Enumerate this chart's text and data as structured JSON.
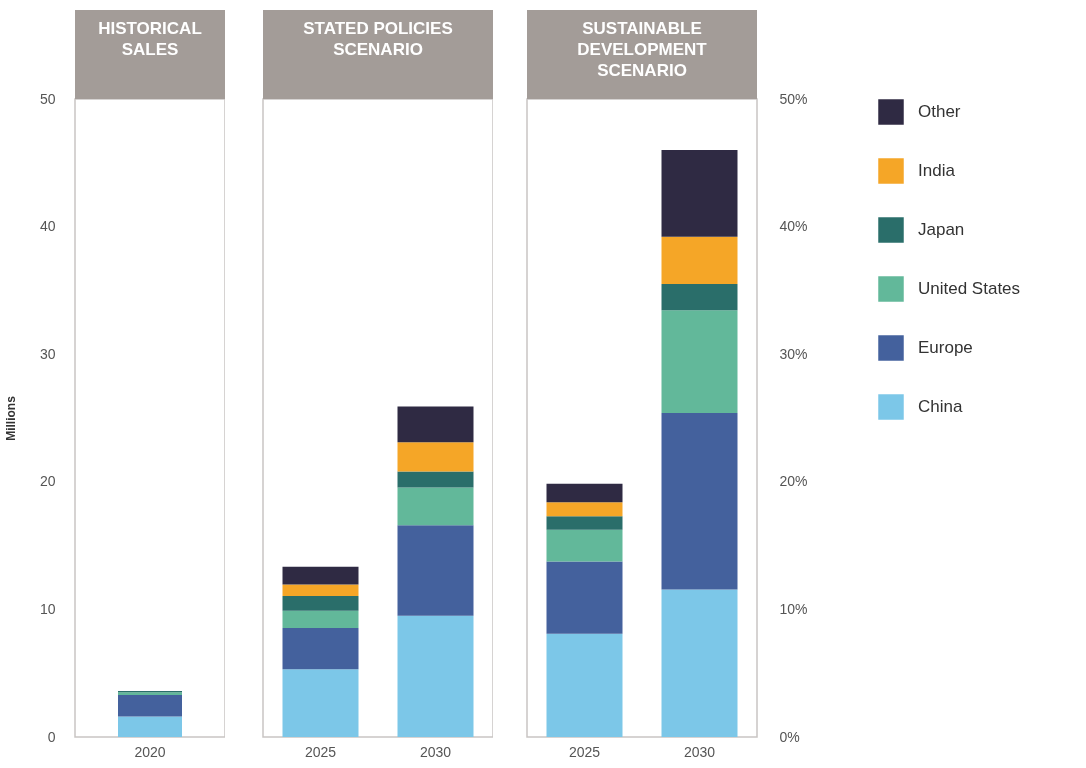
{
  "chart_data": [
    {
      "type": "bar",
      "title": "HISTORICAL SALES",
      "ylabel": "Millions",
      "categories": [
        "2020"
      ],
      "stacked": true,
      "ylim": [
        0,
        50
      ],
      "yticks": [
        0,
        10,
        20,
        30,
        40,
        50
      ],
      "grid": false,
      "series": [
        {
          "color": "#7cc7e8",
          "values": [
            1.6
          ]
        },
        {
          "color": "#44619d",
          "values": [
            1.7
          ]
        },
        {
          "color": "#62b89a",
          "values": [
            0.2
          ]
        },
        {
          "color": "#2a6e6a",
          "values": [
            0.1
          ]
        },
        {
          "color": "#f5a627",
          "values": [
            0
          ]
        },
        {
          "color": "#2f2a43",
          "values": [
            0
          ]
        }
      ]
    },
    {
      "type": "bar",
      "title": "STATED POLICIES SCENARIO",
      "categories": [
        "2025",
        "2030"
      ],
      "stacked": true,
      "ylim": [
        0,
        50
      ],
      "tick_labels": "x",
      "grid": false,
      "series": [
        {
          "color": "#7cc7e8",
          "values": [
            5.3,
            9.5
          ]
        },
        {
          "color": "#44619d",
          "values": [
            3.25,
            7.1
          ]
        },
        {
          "color": "#62b89a",
          "values": [
            1.35,
            2.95
          ]
        },
        {
          "color": "#2a6e6a",
          "values": [
            1.15,
            1.25
          ]
        },
        {
          "color": "#f5a627",
          "values": [
            0.9,
            2.3
          ]
        },
        {
          "color": "#2f2a43",
          "values": [
            1.4,
            2.8
          ]
        }
      ]
    },
    {
      "type": "bar",
      "title": "SUSTAINABLE DEVELOPMENT SCENARIO",
      "categories": [
        "2025",
        "2030"
      ],
      "stacked": true,
      "ylim": [
        0,
        50
      ],
      "tick_labels": "x",
      "y2lim": [
        0,
        50
      ],
      "y2ticks": [
        {
          "value": 0,
          "label": "0%"
        },
        {
          "value": 10,
          "label": "10%"
        },
        {
          "value": 20,
          "label": "20%"
        },
        {
          "value": 30,
          "label": "30%"
        },
        {
          "value": 40,
          "label": "40%"
        },
        {
          "value": 50,
          "label": "50%"
        }
      ],
      "grid": false,
      "legend": "right",
      "series": [
        {
          "name": "China",
          "color": "#7cc7e8",
          "values": [
            8.1,
            11.55
          ]
        },
        {
          "name": "Europe",
          "color": "#44619d",
          "values": [
            5.65,
            13.85
          ]
        },
        {
          "name": "United States",
          "color": "#62b89a",
          "values": [
            2.5,
            8.05
          ]
        },
        {
          "name": "Japan",
          "color": "#2a6e6a",
          "values": [
            1.05,
            2.05
          ]
        },
        {
          "name": "India",
          "color": "#f5a627",
          "values": [
            1.1,
            3.7
          ]
        },
        {
          "name": "Other",
          "color": "#2f2a43",
          "values": [
            1.45,
            6.8
          ]
        }
      ]
    }
  ]
}
